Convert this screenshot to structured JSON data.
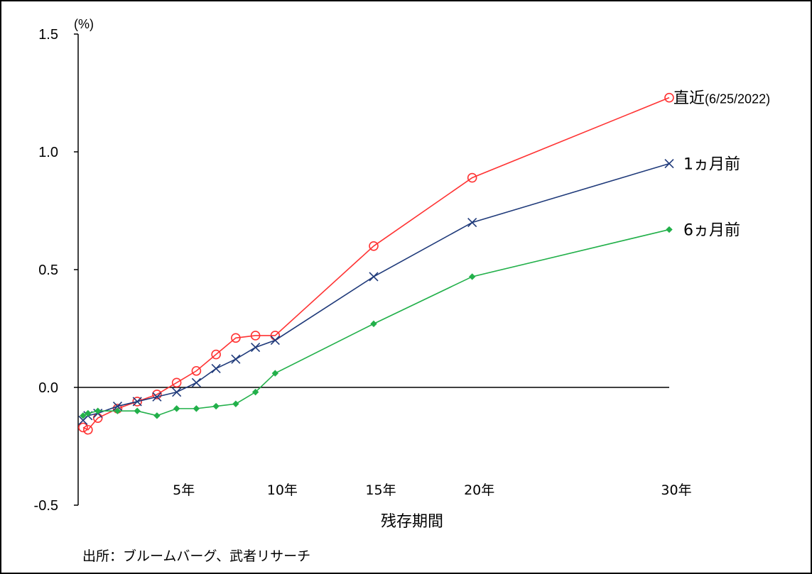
{
  "chart_data": {
    "type": "line",
    "y_unit_label": "(%)",
    "xlabel": "残存期間",
    "ylim": [
      -0.5,
      1.5
    ],
    "xlim": [
      0,
      30
    ],
    "y_ticks": [
      "1.5",
      "1.0",
      "0.5",
      "0.0",
      "-0.5"
    ],
    "y_tick_values": [
      1.5,
      1.0,
      0.5,
      0.0,
      -0.5
    ],
    "x_ticks": [
      "5年",
      "10年",
      "15年",
      "20年",
      "30年"
    ],
    "x_tick_values": [
      5,
      10,
      15,
      20,
      30
    ],
    "grid": false,
    "source": "出所：ブルームバーグ、武者リサーチ",
    "series": [
      {
        "name": "直近",
        "name_suffix": "(6/25/2022)",
        "color": "#ff3333",
        "marker": "circle",
        "x": [
          0.25,
          0.5,
          1,
          2,
          3,
          4,
          5,
          6,
          7,
          8,
          9,
          10,
          15,
          20,
          30
        ],
        "y": [
          -0.17,
          -0.18,
          -0.13,
          -0.09,
          -0.06,
          -0.03,
          0.02,
          0.07,
          0.14,
          0.21,
          0.22,
          0.22,
          0.6,
          0.89,
          1.23
        ]
      },
      {
        "name": "1ヵ月前",
        "color": "#1f3a7a",
        "marker": "x",
        "x": [
          0.25,
          0.5,
          1,
          2,
          3,
          4,
          5,
          6,
          7,
          8,
          9,
          10,
          15,
          20,
          30
        ],
        "y": [
          -0.14,
          -0.12,
          -0.11,
          -0.08,
          -0.06,
          -0.04,
          -0.02,
          0.02,
          0.08,
          0.12,
          0.17,
          0.2,
          0.47,
          0.7,
          0.95
        ]
      },
      {
        "name": "6ヵ月前",
        "color": "#22b04a",
        "marker": "diamond",
        "x": [
          0.25,
          0.5,
          1,
          2,
          3,
          4,
          5,
          6,
          7,
          8,
          9,
          10,
          15,
          20,
          30
        ],
        "y": [
          -0.12,
          -0.11,
          -0.1,
          -0.1,
          -0.1,
          -0.12,
          -0.09,
          -0.09,
          -0.08,
          -0.07,
          -0.02,
          0.06,
          0.27,
          0.47,
          0.67
        ]
      }
    ]
  }
}
